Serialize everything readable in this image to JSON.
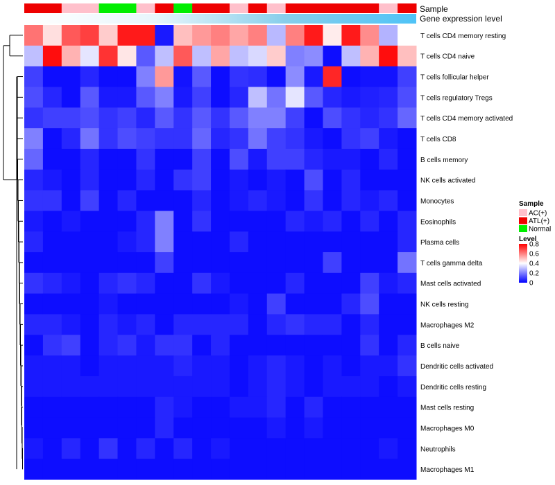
{
  "chart_data": {
    "type": "heatmap",
    "annotation_labels": [
      "Sample",
      "Gene expression level"
    ],
    "sample_legend_title": "Sample",
    "sample_colors": {
      "AC(+)": "#FFC0CB",
      "ATL(+)": "#EE0000",
      "Normal": "#00EE00"
    },
    "samples": [
      "ATL(+)",
      "ATL(+)",
      "AC(+)",
      "AC(+)",
      "Normal",
      "Normal",
      "AC(+)",
      "ATL(+)",
      "Normal",
      "ATL(+)",
      "ATL(+)",
      "AC(+)",
      "ATL(+)",
      "AC(+)",
      "ATL(+)",
      "ATL(+)",
      "ATL(+)",
      "ATL(+)",
      "ATL(+)",
      "AC(+)",
      "ATL(+)"
    ],
    "expression_gradient": [
      "#FFFFFF",
      "#E8F6FC",
      "#87CEEB",
      "#4FC3F7"
    ],
    "level_legend_title": "Level",
    "level_ticks": [
      0.8,
      0.6,
      0.4,
      0.2,
      0
    ],
    "level_range": [
      0,
      0.8
    ],
    "colormap": [
      "#0000FF",
      "#FFFFFF",
      "#FF0000"
    ],
    "rows": [
      "T cells CD4 memory resting",
      "T cells CD4 naive",
      "T cells follicular helper",
      "T cells regulatory  Tregs",
      "T cells CD4 memory activated",
      "T cells CD8",
      "B cells memory",
      "NK cells activated",
      "Monocytes",
      "Eosinophils",
      "Plasma cells",
      "T cells gamma delta",
      "Mast cells activated",
      "NK cells resting",
      "Macrophages M2",
      "B cells naive",
      "Dendritic cells activated",
      "Dendritic cells resting",
      "Mast cells resting",
      "Macrophages M0",
      "Neutrophils",
      "Macrophages M1"
    ],
    "values": [
      [
        0.62,
        0.45,
        0.66,
        0.7,
        0.48,
        0.76,
        0.76,
        0.04,
        0.5,
        0.56,
        0.6,
        0.54,
        0.6,
        0.29,
        0.6,
        0.76,
        0.43,
        0.76,
        0.58,
        0.28,
        0.4
      ],
      [
        0.3,
        0.78,
        0.52,
        0.36,
        0.72,
        0.44,
        0.14,
        0.3,
        0.66,
        0.3,
        0.54,
        0.3,
        0.34,
        0.48,
        0.2,
        0.22,
        0.02,
        0.3,
        0.52,
        0.78,
        0.5
      ],
      [
        0.1,
        0.02,
        0.02,
        0.06,
        0.02,
        0.02,
        0.2,
        0.56,
        0.03,
        0.14,
        0.02,
        0.08,
        0.07,
        0.02,
        0.22,
        0.04,
        0.74,
        0.02,
        0.03,
        0.03,
        0.1
      ],
      [
        0.12,
        0.06,
        0.02,
        0.14,
        0.04,
        0.04,
        0.14,
        0.2,
        0.04,
        0.1,
        0.02,
        0.06,
        0.3,
        0.18,
        0.36,
        0.14,
        0.06,
        0.04,
        0.05,
        0.06,
        0.12
      ],
      [
        0.08,
        0.1,
        0.1,
        0.12,
        0.08,
        0.1,
        0.06,
        0.14,
        0.08,
        0.14,
        0.08,
        0.14,
        0.2,
        0.2,
        0.1,
        0.02,
        0.12,
        0.08,
        0.06,
        0.08,
        0.16
      ],
      [
        0.2,
        0.02,
        0.06,
        0.18,
        0.08,
        0.12,
        0.1,
        0.08,
        0.08,
        0.16,
        0.06,
        0.08,
        0.18,
        0.1,
        0.08,
        0.04,
        0.02,
        0.08,
        0.1,
        0.04,
        0.02
      ],
      [
        0.16,
        0.02,
        0.02,
        0.06,
        0.02,
        0.02,
        0.08,
        0.02,
        0.02,
        0.1,
        0.02,
        0.12,
        0.04,
        0.1,
        0.1,
        0.06,
        0.04,
        0.04,
        0.02,
        0.06,
        0.02
      ],
      [
        0.06,
        0.04,
        0.02,
        0.06,
        0.02,
        0.02,
        0.06,
        0.02,
        0.08,
        0.1,
        0.02,
        0.04,
        0.02,
        0.04,
        0.02,
        0.12,
        0.02,
        0.06,
        0.02,
        0.02,
        0.02
      ],
      [
        0.08,
        0.08,
        0.02,
        0.1,
        0.02,
        0.06,
        0.02,
        0.02,
        0.02,
        0.06,
        0.02,
        0.04,
        0.06,
        0.04,
        0.02,
        0.08,
        0.02,
        0.06,
        0.04,
        0.06,
        0.02
      ],
      [
        0.04,
        0.02,
        0.04,
        0.02,
        0.02,
        0.02,
        0.06,
        0.2,
        0.02,
        0.08,
        0.02,
        0.02,
        0.02,
        0.02,
        0.06,
        0.04,
        0.06,
        0.02,
        0.06,
        0.02,
        0.06
      ],
      [
        0.06,
        0.02,
        0.02,
        0.02,
        0.02,
        0.04,
        0.06,
        0.2,
        0.02,
        0.02,
        0.02,
        0.06,
        0.02,
        0.02,
        0.02,
        0.02,
        0.02,
        0.02,
        0.02,
        0.02,
        0.06
      ],
      [
        0.02,
        0.02,
        0.02,
        0.02,
        0.02,
        0.02,
        0.02,
        0.1,
        0.02,
        0.02,
        0.02,
        0.02,
        0.02,
        0.02,
        0.02,
        0.02,
        0.1,
        0.02,
        0.02,
        0.02,
        0.18
      ],
      [
        0.08,
        0.06,
        0.04,
        0.02,
        0.06,
        0.08,
        0.06,
        0.02,
        0.02,
        0.08,
        0.04,
        0.02,
        0.02,
        0.02,
        0.06,
        0.02,
        0.02,
        0.02,
        0.1,
        0.04,
        0.06
      ],
      [
        0.02,
        0.02,
        0.02,
        0.02,
        0.04,
        0.02,
        0.02,
        0.02,
        0.02,
        0.02,
        0.02,
        0.04,
        0.02,
        0.1,
        0.02,
        0.02,
        0.02,
        0.06,
        0.12,
        0.02,
        0.02
      ],
      [
        0.06,
        0.06,
        0.04,
        0.02,
        0.06,
        0.04,
        0.06,
        0.02,
        0.06,
        0.06,
        0.06,
        0.06,
        0.02,
        0.06,
        0.08,
        0.06,
        0.06,
        0.02,
        0.06,
        0.02,
        0.02
      ],
      [
        0.02,
        0.08,
        0.1,
        0.02,
        0.06,
        0.08,
        0.04,
        0.08,
        0.08,
        0.02,
        0.06,
        0.02,
        0.02,
        0.02,
        0.02,
        0.02,
        0.02,
        0.02,
        0.08,
        0.02,
        0.06
      ],
      [
        0.04,
        0.04,
        0.04,
        0.02,
        0.04,
        0.04,
        0.04,
        0.04,
        0.06,
        0.04,
        0.04,
        0.02,
        0.04,
        0.06,
        0.04,
        0.02,
        0.04,
        0.02,
        0.04,
        0.04,
        0.08
      ],
      [
        0.04,
        0.04,
        0.04,
        0.04,
        0.04,
        0.04,
        0.04,
        0.04,
        0.04,
        0.04,
        0.04,
        0.02,
        0.04,
        0.06,
        0.04,
        0.02,
        0.04,
        0.04,
        0.04,
        0.02,
        0.04
      ],
      [
        0.02,
        0.02,
        0.02,
        0.02,
        0.02,
        0.02,
        0.02,
        0.06,
        0.04,
        0.02,
        0.02,
        0.04,
        0.04,
        0.06,
        0.02,
        0.06,
        0.02,
        0.02,
        0.02,
        0.02,
        0.02
      ],
      [
        0.02,
        0.02,
        0.02,
        0.02,
        0.02,
        0.02,
        0.02,
        0.06,
        0.02,
        0.02,
        0.02,
        0.02,
        0.02,
        0.04,
        0.02,
        0.04,
        0.02,
        0.02,
        0.02,
        0.02,
        0.02
      ],
      [
        0.04,
        0.02,
        0.06,
        0.02,
        0.08,
        0.02,
        0.06,
        0.02,
        0.06,
        0.02,
        0.04,
        0.02,
        0.02,
        0.02,
        0.02,
        0.02,
        0.02,
        0.02,
        0.02,
        0.04,
        0.02
      ],
      [
        0.02,
        0.02,
        0.02,
        0.02,
        0.02,
        0.02,
        0.02,
        0.02,
        0.02,
        0.02,
        0.02,
        0.02,
        0.02,
        0.02,
        0.02,
        0.02,
        0.02,
        0.02,
        0.02,
        0.02,
        0.02
      ]
    ],
    "dendrogram": "complete-linkage row clustering"
  }
}
